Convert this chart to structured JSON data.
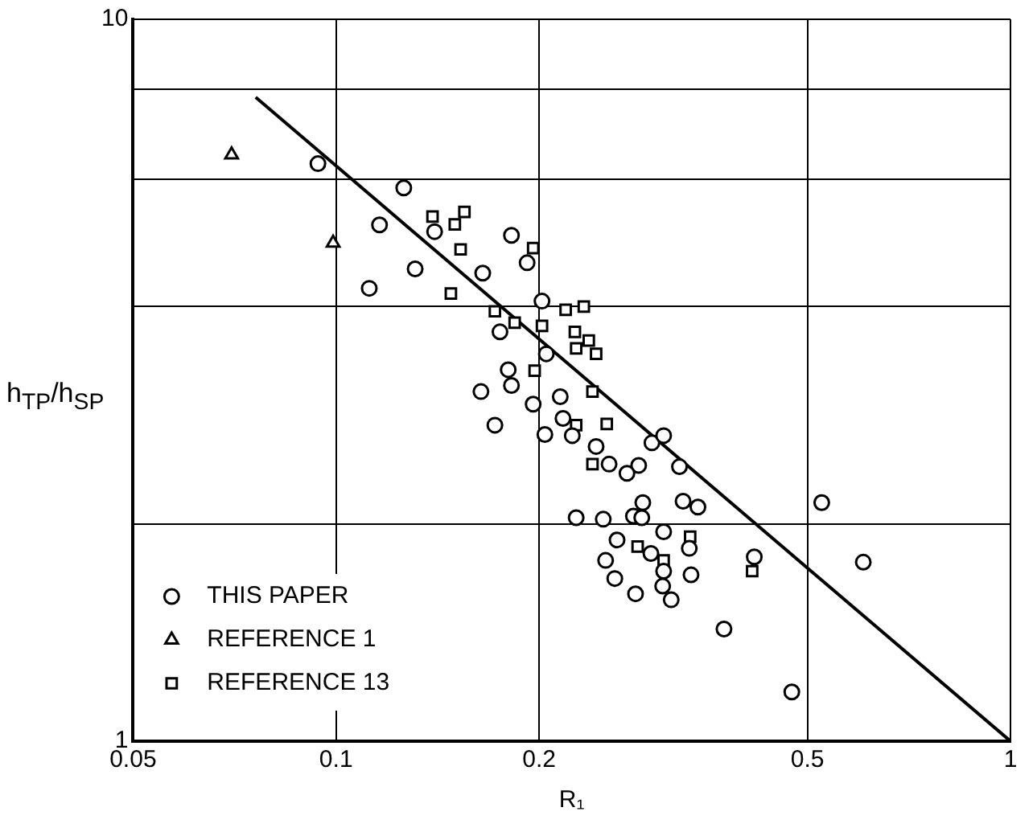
{
  "chart_data": {
    "type": "scatter",
    "xlabel": "R₁",
    "ylabel": "h$_{TP}$/h$_{SP}$",
    "log": "xy",
    "grid": true,
    "legend": "bottom left",
    "xlim": [
      0.05,
      1
    ],
    "xticks": [
      0.05,
      0.1,
      0.2,
      0.5,
      1
    ],
    "ylim": [
      1,
      10
    ],
    "yticks": [
      1,
      {
        "value": 2,
        "label": null
      },
      {
        "value": 4,
        "label": null
      },
      {
        "value": 6,
        "label": null
      },
      {
        "value": 8,
        "label": null
      },
      10
    ],
    "series": [
      {
        "name": "THIS PAPER",
        "color": "#000000",
        "marker": "circle",
        "x": [
          0.094,
          0.126,
          0.116,
          0.14,
          0.182,
          0.131,
          0.112,
          0.165,
          0.192,
          0.202,
          0.175,
          0.205,
          0.18,
          0.182,
          0.164,
          0.196,
          0.215,
          0.172,
          0.217,
          0.204,
          0.224,
          0.243,
          0.294,
          0.306,
          0.254,
          0.281,
          0.27,
          0.323,
          0.285,
          0.327,
          0.344,
          0.525,
          0.227,
          0.249,
          0.276,
          0.284,
          0.306,
          0.261,
          0.334,
          0.293,
          0.417,
          0.605,
          0.251,
          0.306,
          0.336,
          0.259,
          0.305,
          0.278,
          0.314,
          0.376,
          0.474
        ],
        "values": [
          6.31,
          5.84,
          5.19,
          5.08,
          5.02,
          4.51,
          4.24,
          4.45,
          4.6,
          4.07,
          3.69,
          3.44,
          3.27,
          3.11,
          3.05,
          2.93,
          3.0,
          2.74,
          2.8,
          2.66,
          2.65,
          2.56,
          2.59,
          2.65,
          2.42,
          2.41,
          2.35,
          2.4,
          2.14,
          2.15,
          2.11,
          2.14,
          2.04,
          2.03,
          2.05,
          2.04,
          1.95,
          1.9,
          1.85,
          1.82,
          1.8,
          1.77,
          1.78,
          1.72,
          1.7,
          1.68,
          1.64,
          1.6,
          1.57,
          1.43,
          1.17
        ]
      },
      {
        "name": "REFERENCE 1",
        "color": "#000000",
        "marker": "triangle",
        "x": [
          0.07,
          0.099
        ],
        "values": [
          6.49,
          4.9
        ]
      },
      {
        "name": "REFERENCE 13",
        "color": "#000000",
        "marker": "square",
        "x": [
          0.139,
          0.15,
          0.155,
          0.153,
          0.196,
          0.148,
          0.172,
          0.184,
          0.202,
          0.219,
          0.233,
          0.226,
          0.227,
          0.237,
          0.243,
          0.197,
          0.24,
          0.227,
          0.252,
          0.24,
          0.28,
          0.306,
          0.335,
          0.414
        ],
        "values": [
          5.33,
          5.2,
          5.41,
          4.8,
          4.82,
          4.17,
          3.94,
          3.8,
          3.76,
          3.96,
          4.0,
          3.69,
          3.5,
          3.59,
          3.44,
          3.26,
          3.05,
          2.74,
          2.75,
          2.42,
          1.86,
          1.78,
          1.92,
          1.72
        ]
      },
      {
        "type": "line",
        "color": "#000000",
        "marker": "none",
        "line_style": "solid",
        "x": [
          0.076,
          1
        ],
        "values": [
          7.8,
          1
        ]
      }
    ]
  }
}
